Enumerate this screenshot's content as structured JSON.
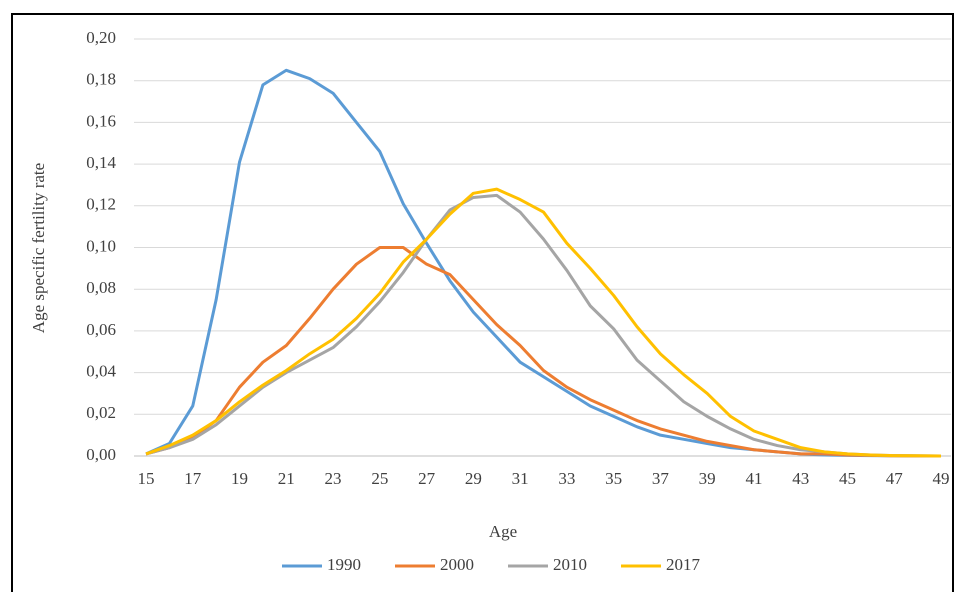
{
  "chart_data": {
    "type": "line",
    "x_label": "Age",
    "y_label": "Age specific fertility rate",
    "x": [
      15,
      16,
      17,
      18,
      19,
      20,
      21,
      22,
      23,
      24,
      25,
      26,
      27,
      28,
      29,
      30,
      31,
      32,
      33,
      34,
      35,
      36,
      37,
      38,
      39,
      40,
      41,
      42,
      43,
      44,
      45,
      46,
      47,
      48,
      49
    ],
    "xlim": [
      15,
      49
    ],
    "xticks": [
      15,
      17,
      19,
      21,
      23,
      25,
      27,
      29,
      31,
      33,
      35,
      37,
      39,
      41,
      43,
      45,
      47,
      49
    ],
    "ylim": [
      0,
      0.2
    ],
    "yticks": [
      {
        "value": 0,
        "label": "0,00"
      },
      {
        "value": 0.02,
        "label": "0,02"
      },
      {
        "value": 0.04,
        "label": "0,04"
      },
      {
        "value": 0.06,
        "label": "0,06"
      },
      {
        "value": 0.08,
        "label": "0,08"
      },
      {
        "value": 0.1,
        "label": "0,10"
      },
      {
        "value": 0.12,
        "label": "0,12"
      },
      {
        "value": 0.14,
        "label": "0,14"
      },
      {
        "value": 0.16,
        "label": "0,16"
      },
      {
        "value": 0.18,
        "label": "0,18"
      },
      {
        "value": 0.2,
        "label": "0,20"
      }
    ],
    "grid": true,
    "legend": "bottom",
    "series": [
      {
        "name": "1990",
        "color": "#5b9bd5",
        "values": [
          0.001,
          0.006,
          0.024,
          0.075,
          0.141,
          0.178,
          0.185,
          0.181,
          0.174,
          0.16,
          0.146,
          0.121,
          0.102,
          0.084,
          0.069,
          0.057,
          0.045,
          0.038,
          0.031,
          0.024,
          0.019,
          0.014,
          0.01,
          0.008,
          0.006,
          0.004,
          0.003,
          0.002,
          0.001,
          0.0005,
          0.0003,
          0.0002,
          0.0001,
          0,
          0
        ]
      },
      {
        "name": "2000",
        "color": "#ed7d31",
        "values": [
          0.001,
          0.004,
          0.009,
          0.017,
          0.033,
          0.045,
          0.053,
          0.066,
          0.08,
          0.092,
          0.1,
          0.1,
          0.092,
          0.087,
          0.075,
          0.063,
          0.053,
          0.041,
          0.033,
          0.027,
          0.022,
          0.017,
          0.013,
          0.01,
          0.007,
          0.005,
          0.003,
          0.002,
          0.001,
          0.001,
          0.0005,
          0.0003,
          0.0001,
          0,
          0
        ]
      },
      {
        "name": "2010",
        "color": "#a5a5a5",
        "values": [
          0.001,
          0.004,
          0.008,
          0.015,
          0.024,
          0.033,
          0.04,
          0.046,
          0.052,
          0.062,
          0.074,
          0.088,
          0.104,
          0.118,
          0.124,
          0.125,
          0.117,
          0.104,
          0.089,
          0.072,
          0.061,
          0.046,
          0.036,
          0.026,
          0.019,
          0.013,
          0.008,
          0.005,
          0.003,
          0.002,
          0.001,
          0.0005,
          0.0002,
          0.0001,
          0
        ]
      },
      {
        "name": "2017",
        "color": "#ffc000",
        "values": [
          0.001,
          0.005,
          0.01,
          0.017,
          0.026,
          0.034,
          0.041,
          0.049,
          0.056,
          0.066,
          0.078,
          0.093,
          0.104,
          0.116,
          0.126,
          0.128,
          0.123,
          0.117,
          0.102,
          0.09,
          0.077,
          0.062,
          0.049,
          0.039,
          0.03,
          0.019,
          0.012,
          0.008,
          0.004,
          0.002,
          0.001,
          0.0005,
          0.0002,
          0.0001,
          0
        ]
      }
    ]
  }
}
